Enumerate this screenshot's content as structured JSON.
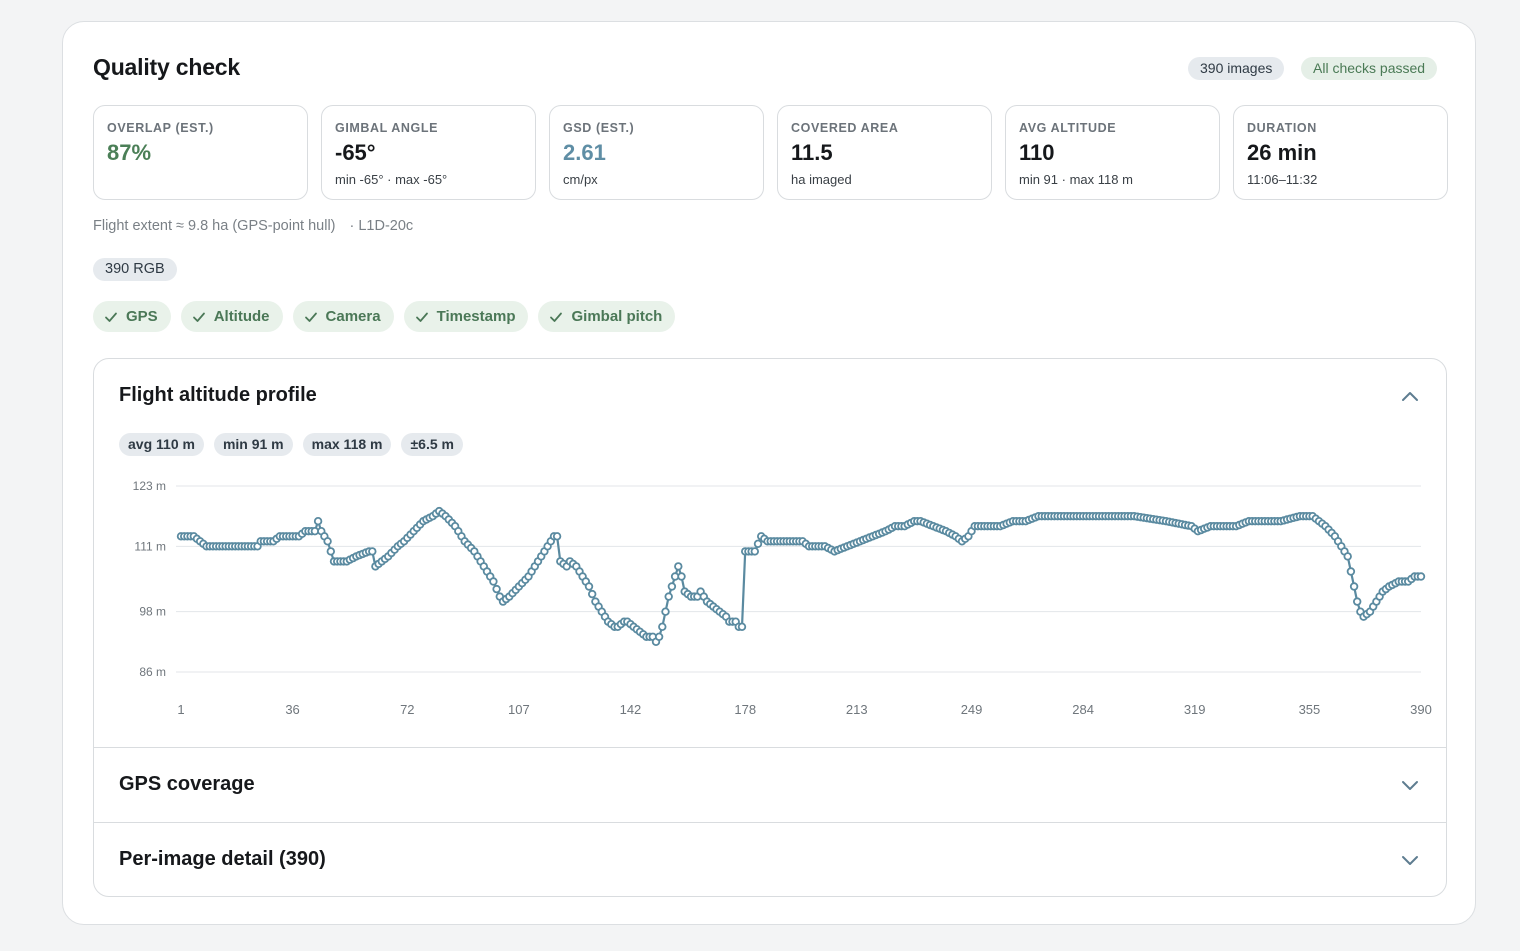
{
  "header": {
    "title": "Quality check",
    "images_badge": "390 images",
    "status_badge": "All checks passed"
  },
  "stats": [
    {
      "label": "Overlap (est.)",
      "value": "87%",
      "sub": "",
      "color": "#4b7f57"
    },
    {
      "label": "Gimbal angle",
      "value": "-65°",
      "sub": "min -65° · max -65°",
      "color": "#16181b"
    },
    {
      "label": "GSD (est.)",
      "value": "2.61",
      "sub": "cm/px",
      "color": "#5f8ea5"
    },
    {
      "label": "Covered area",
      "value": "11.5",
      "sub": "ha imaged",
      "color": "#16181b"
    },
    {
      "label": "Avg altitude",
      "value": "110",
      "sub": "min 91 · max 118 m",
      "color": "#16181b"
    },
    {
      "label": "Duration",
      "value": "26 min",
      "sub": "11:06–11:32",
      "color": "#16181b"
    }
  ],
  "extent": {
    "text": "Flight extent ≈ 9.8 ha (GPS-point hull)",
    "model": "· L1D-20c"
  },
  "rgb_badge": "390 RGB",
  "checks": [
    "GPS",
    "Altitude",
    "Camera",
    "Timestamp",
    "Gimbal pitch"
  ],
  "altitude_section": {
    "title": "Flight altitude profile",
    "pills": [
      "avg 110 m",
      "min 91 m",
      "max 118 m",
      "±6.5 m"
    ]
  },
  "gps_section": {
    "title": "GPS coverage"
  },
  "detail_section": {
    "title": "Per-image detail (390)"
  },
  "colors": {
    "line": "#5a8aa0",
    "grid": "#e3e6e9",
    "passed": "#4b7857"
  },
  "chart_data": {
    "type": "line",
    "title": "",
    "xlabel": "",
    "ylabel": "",
    "x_ticks": [
      1,
      36,
      72,
      107,
      142,
      178,
      213,
      249,
      284,
      319,
      355,
      390
    ],
    "y_ticks": [
      "123 m",
      "111 m",
      "98 m",
      "86 m"
    ],
    "xlim": [
      1,
      390
    ],
    "ylim": [
      86,
      123
    ],
    "grid": true,
    "series": [
      {
        "points": [
          [
            1,
            113
          ],
          [
            5,
            113
          ],
          [
            7,
            112
          ],
          [
            9,
            111
          ],
          [
            20,
            111
          ],
          [
            25,
            111
          ],
          [
            26,
            112
          ],
          [
            30,
            112
          ],
          [
            32,
            113
          ],
          [
            38,
            113
          ],
          [
            40,
            114
          ],
          [
            43,
            114
          ],
          [
            44,
            116
          ],
          [
            45,
            114
          ],
          [
            47,
            112
          ],
          [
            48,
            110
          ],
          [
            49,
            108
          ],
          [
            53,
            108
          ],
          [
            56,
            109
          ],
          [
            60,
            110
          ],
          [
            61,
            110
          ],
          [
            62,
            107
          ],
          [
            66,
            109
          ],
          [
            69,
            111
          ],
          [
            71,
            112
          ],
          [
            74,
            114
          ],
          [
            77,
            116
          ],
          [
            80,
            117
          ],
          [
            82,
            118
          ],
          [
            84,
            117
          ],
          [
            87,
            115
          ],
          [
            90,
            112
          ],
          [
            93,
            110
          ],
          [
            96,
            107
          ],
          [
            99,
            104
          ],
          [
            101,
            101
          ],
          [
            102,
            100
          ],
          [
            104,
            101
          ],
          [
            107,
            103
          ],
          [
            110,
            105
          ],
          [
            113,
            108
          ],
          [
            115,
            110
          ],
          [
            117,
            112
          ],
          [
            118,
            113
          ],
          [
            119,
            113
          ],
          [
            120,
            108
          ],
          [
            122,
            107
          ],
          [
            123,
            108
          ],
          [
            125,
            107
          ],
          [
            127,
            105
          ],
          [
            129,
            103
          ],
          [
            131,
            100
          ],
          [
            133,
            98
          ],
          [
            135,
            96
          ],
          [
            137,
            95
          ],
          [
            138,
            95
          ],
          [
            140,
            96
          ],
          [
            141,
            96
          ],
          [
            143,
            95
          ],
          [
            145,
            94
          ],
          [
            147,
            93
          ],
          [
            149,
            93
          ],
          [
            150,
            92
          ],
          [
            151,
            93
          ],
          [
            152,
            95
          ],
          [
            153,
            98
          ],
          [
            154,
            101
          ],
          [
            155,
            103
          ],
          [
            157,
            107
          ],
          [
            158,
            105
          ],
          [
            159,
            102
          ],
          [
            161,
            101
          ],
          [
            162,
            101
          ],
          [
            163,
            101
          ],
          [
            164,
            102
          ],
          [
            166,
            100
          ],
          [
            168,
            99
          ],
          [
            170,
            98
          ],
          [
            172,
            97
          ],
          [
            173,
            96
          ],
          [
            175,
            96
          ],
          [
            176,
            95
          ],
          [
            177,
            95
          ],
          [
            178,
            110
          ],
          [
            181,
            110
          ],
          [
            183,
            113
          ],
          [
            185,
            112
          ],
          [
            190,
            112
          ],
          [
            196,
            112
          ],
          [
            198,
            111
          ],
          [
            203,
            111
          ],
          [
            206,
            110
          ],
          [
            210,
            111
          ],
          [
            214,
            112
          ],
          [
            218,
            113
          ],
          [
            222,
            114
          ],
          [
            225,
            115
          ],
          [
            228,
            115
          ],
          [
            231,
            116
          ],
          [
            233,
            116
          ],
          [
            237,
            115
          ],
          [
            241,
            114
          ],
          [
            244,
            113
          ],
          [
            246,
            112
          ],
          [
            248,
            113
          ],
          [
            250,
            115
          ],
          [
            255,
            115
          ],
          [
            258,
            115
          ],
          [
            262,
            116
          ],
          [
            266,
            116
          ],
          [
            270,
            117
          ],
          [
            280,
            117
          ],
          [
            300,
            117
          ],
          [
            310,
            116
          ],
          [
            318,
            115
          ],
          [
            320,
            114
          ],
          [
            324,
            115
          ],
          [
            332,
            115
          ],
          [
            336,
            116
          ],
          [
            340,
            116
          ],
          [
            346,
            116
          ],
          [
            352,
            117
          ],
          [
            356,
            117
          ],
          [
            358,
            116
          ],
          [
            360,
            115
          ],
          [
            363,
            113
          ],
          [
            365,
            111
          ],
          [
            367,
            109
          ],
          [
            368,
            106
          ],
          [
            369,
            103
          ],
          [
            370,
            100
          ],
          [
            371,
            98
          ],
          [
            372,
            97
          ],
          [
            374,
            98
          ],
          [
            376,
            100
          ],
          [
            378,
            102
          ],
          [
            380,
            103
          ],
          [
            383,
            104
          ],
          [
            386,
            104
          ],
          [
            388,
            105
          ],
          [
            390,
            105
          ]
        ]
      }
    ]
  }
}
